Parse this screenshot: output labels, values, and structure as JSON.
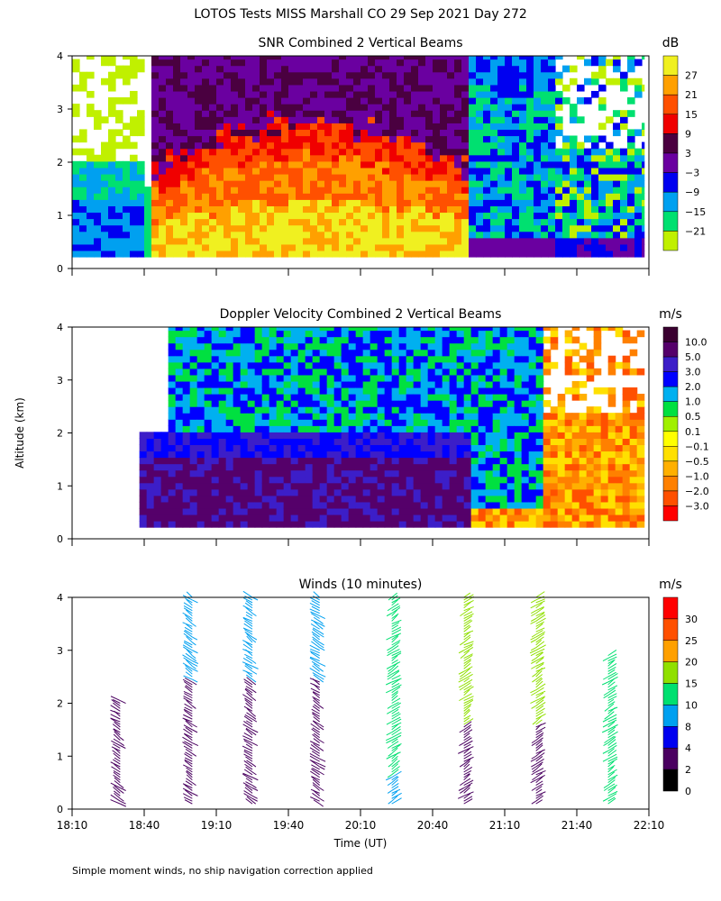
{
  "chart_data": [
    {
      "type": "heatmap",
      "title": "SNR Combined 2 Vertical Beams",
      "units": "dB",
      "colorbar_ticks": [
        "27",
        "21",
        "15",
        "9",
        "3",
        "−3",
        "−9",
        "−15",
        "−21"
      ],
      "colorbar_colors": [
        "#f0f020",
        "#ffa000",
        "#ff5000",
        "#f00000",
        "#4a0040",
        "#6a00a0",
        "#0000f0",
        "#00a0f0",
        "#00e070",
        "#c0f000"
      ],
      "ylim": [
        0,
        4
      ],
      "y_ticks": [
        "0",
        "1",
        "2",
        "3",
        "4"
      ],
      "xlim": [
        0,
        240
      ],
      "x_ticks": [
        "18:10",
        "18:40",
        "19:10",
        "19:40",
        "20:10",
        "20:40",
        "21:10",
        "21:40",
        "22:10"
      ],
      "x_tick_labels_shown": false
    },
    {
      "type": "heatmap",
      "title": "Doppler Velocity Combined 2 Vertical Beams",
      "units": "m/s",
      "colorbar_ticks": [
        "10.0",
        "5.0",
        "3.0",
        "2.0",
        "1.0",
        "0.5",
        "0.1",
        "−0.1",
        "−0.5",
        "−1.0",
        "−2.0",
        "−3.0"
      ],
      "colorbar_colors": [
        "#3a0030",
        "#55006a",
        "#3c1ec8",
        "#0000ff",
        "#00b0f0",
        "#00e040",
        "#a0f000",
        "#ffff00",
        "#ffe000",
        "#ffb000",
        "#ff8000",
        "#ff5000",
        "#ff0000"
      ],
      "ylim": [
        0,
        4
      ],
      "y_ticks": [
        "0",
        "1",
        "2",
        "3",
        "4"
      ],
      "ylabel": "Altitude (km)",
      "xlim": [
        0,
        240
      ],
      "x_ticks": [
        "18:10",
        "18:40",
        "19:10",
        "19:40",
        "20:10",
        "20:40",
        "21:10",
        "21:40",
        "22:10"
      ],
      "x_tick_labels_shown": false
    },
    {
      "type": "scatter",
      "title": "Winds (10 minutes)",
      "units": "m/s",
      "colorbar_ticks": [
        "30",
        "25",
        "20",
        "15",
        "10",
        "8",
        "4",
        "2",
        "0"
      ],
      "colorbar_colors": [
        "#ff0000",
        "#ff5000",
        "#ffa000",
        "#90e000",
        "#00e070",
        "#00a0f0",
        "#0000f0",
        "#4a0060",
        "#000000"
      ],
      "ylim": [
        0,
        4
      ],
      "y_ticks": [
        "0",
        "1",
        "2",
        "3",
        "4"
      ],
      "xlabel": "Time (UT)",
      "xlim": [
        0,
        240
      ],
      "x_ticks": [
        "18:10",
        "18:40",
        "19:10",
        "19:40",
        "20:10",
        "20:40",
        "21:10",
        "21:40",
        "22:10"
      ],
      "x_tick_labels_shown": true,
      "profile_times_min": [
        20,
        50,
        75,
        103,
        133,
        163,
        193,
        223
      ]
    }
  ],
  "header": {
    "title": "LOTOS Tests MISS Marshall CO  29 Sep 2021 Day 272"
  },
  "footer": {
    "note": "Simple moment winds, no ship navigation correction applied"
  }
}
